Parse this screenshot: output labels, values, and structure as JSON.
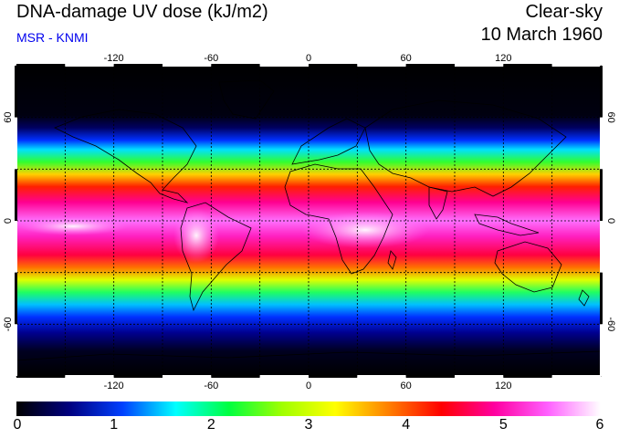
{
  "header": {
    "title": "DNA-damage UV dose (kJ/m2)",
    "source": "MSR - KNMI",
    "condition": "Clear-sky",
    "date": "10 March 1960"
  },
  "map": {
    "projection": "equirectangular",
    "lon_ticks": [
      -120,
      -60,
      0,
      60,
      120
    ],
    "lat_ticks": [
      60,
      0,
      -60
    ],
    "gridlines": "dashed",
    "coastlines": "black"
  },
  "colorbar": {
    "min": 0,
    "max": 6,
    "labels": [
      "0",
      "1",
      "2",
      "3",
      "4",
      "5",
      "6"
    ],
    "colors": [
      "#000000",
      "#000080",
      "#0040ff",
      "#00ffff",
      "#00ff40",
      "#a0ff00",
      "#ffff00",
      "#ff8000",
      "#ff0000",
      "#ff00a0",
      "#ff60ff",
      "#ffffff"
    ]
  }
}
